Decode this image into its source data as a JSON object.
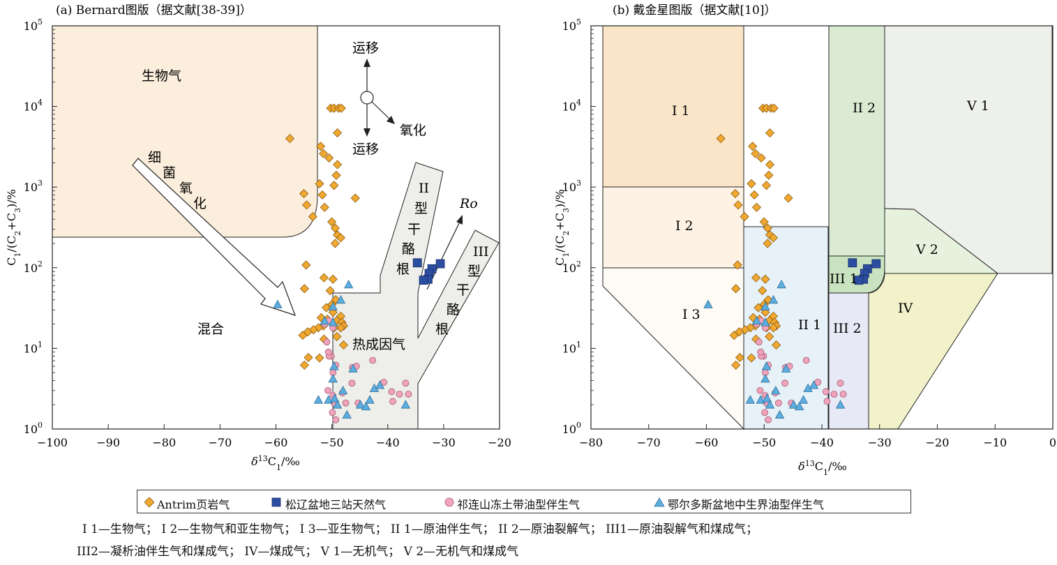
{
  "chart_data": [
    {
      "type": "scatter",
      "title": "(a) Bernard图版（据文献[38-39]）",
      "xlabel": "δ13C1/‰",
      "ylabel": "C1/(C2+C3)/%",
      "xlim": [
        -100,
        -20
      ],
      "ylim": [
        1,
        100000
      ],
      "yscale": "log",
      "x_ticks": [
        "−100",
        "−90",
        "−80",
        "−70",
        "−60",
        "−50",
        "−40",
        "−30",
        "−20"
      ],
      "y_ticks": [
        "10^0",
        "10^1",
        "10^2",
        "10^3",
        "10^4",
        "10^5"
      ],
      "region_labels": {
        "bio": "生物气",
        "mix": "混合",
        "thermo": "热成因气",
        "kerogen2": [
          "II",
          "型",
          "干",
          "酪",
          "根"
        ],
        "kerogen3": [
          "III",
          "型",
          "干",
          "酪",
          "根"
        ],
        "bact": [
          "细",
          "菌",
          "氧",
          "化"
        ],
        "mig_up": "运移",
        "mig_down": "运移",
        "oxid": "氧化",
        "ro": "Ro"
      }
    },
    {
      "type": "scatter",
      "title": "(b) 戴金星图版（据文献[10]）",
      "xlabel": "δ13C1/‰",
      "ylabel": "C1/(C2+C3)/%",
      "xlim": [
        -80,
        0
      ],
      "ylim": [
        1,
        100000
      ],
      "yscale": "log",
      "x_ticks": [
        "−80",
        "−70",
        "−60",
        "−50",
        "−40",
        "−30",
        "−20",
        "−10",
        "0"
      ],
      "y_ticks": [
        "10^0",
        "10^1",
        "10^2",
        "10^3",
        "10^4",
        "10^5"
      ],
      "region_labels": {
        "I1": "I 1",
        "I2": "I 2",
        "I3": "I 3",
        "II1": "II 1",
        "II2": "II 2",
        "III1": "III 1",
        "III2": "III 2",
        "IV": "IV",
        "V1": "V 1",
        "V2": "V 2"
      }
    }
  ],
  "series": [
    {
      "name": "Antrim页岩气",
      "color": "#F0A830",
      "marker": "diamond",
      "points": [
        [
          -50.2,
          9500
        ],
        [
          -49.6,
          9500
        ],
        [
          -48.8,
          9500
        ],
        [
          -48.3,
          9500
        ],
        [
          -49.0,
          4700
        ],
        [
          -57.5,
          4000
        ],
        [
          -52.0,
          3200
        ],
        [
          -51.5,
          2600
        ],
        [
          -50.5,
          2300
        ],
        [
          -49.0,
          1900
        ],
        [
          -49.2,
          1400
        ],
        [
          -49.6,
          1050
        ],
        [
          -52.2,
          1100
        ],
        [
          -55.0,
          830
        ],
        [
          -51.7,
          800
        ],
        [
          -54.5,
          600
        ],
        [
          -51.3,
          560
        ],
        [
          -45.8,
          730
        ],
        [
          -53.4,
          430
        ],
        [
          -50.0,
          370
        ],
        [
          -49.4,
          310
        ],
        [
          -49.0,
          255
        ],
        [
          -48.4,
          235
        ],
        [
          -49.4,
          200
        ],
        [
          -54.6,
          108
        ],
        [
          -51.4,
          75
        ],
        [
          -49.8,
          72
        ],
        [
          -54.9,
          55
        ],
        [
          -50.3,
          52
        ],
        [
          -49.3,
          40
        ],
        [
          -50.0,
          35
        ],
        [
          -51.0,
          32
        ],
        [
          -49.8,
          28
        ],
        [
          -48.4,
          25
        ],
        [
          -50.8,
          23
        ],
        [
          -51.9,
          24
        ],
        [
          -49.1,
          22
        ],
        [
          -48.2,
          21
        ],
        [
          -47.9,
          19
        ],
        [
          -48.4,
          18
        ],
        [
          -49.6,
          18
        ],
        [
          -51.5,
          19
        ],
        [
          -52.4,
          18
        ],
        [
          -53.3,
          17
        ],
        [
          -54.3,
          16
        ],
        [
          -55.2,
          14.5
        ],
        [
          -51.4,
          13
        ],
        [
          -49.1,
          14
        ],
        [
          -47.9,
          11
        ],
        [
          -54.2,
          7.7
        ],
        [
          -52.2,
          7.6
        ],
        [
          -54.9,
          6.2
        ]
      ]
    },
    {
      "name": "松辽盆地三站天然气",
      "color": "#2B4EA0",
      "marker": "square",
      "points": [
        [
          -34.7,
          115
        ],
        [
          -30.6,
          112
        ],
        [
          -32.1,
          97
        ],
        [
          -32.6,
          85
        ],
        [
          -32.8,
          72
        ],
        [
          -33.6,
          70
        ]
      ]
    },
    {
      "name": "祁连山冻土带油型伴生气",
      "color": "#F2A3BC",
      "marker": "circle",
      "points": [
        [
          -50.5,
          22
        ],
        [
          -49.8,
          18
        ],
        [
          -51.3,
          20
        ],
        [
          -50.1,
          8
        ],
        [
          -50.5,
          8
        ],
        [
          -49.3,
          6.2
        ],
        [
          -49.8,
          5
        ],
        [
          -50.7,
          3
        ],
        [
          -49.8,
          2.6
        ],
        [
          -49.6,
          2.1
        ],
        [
          -48.1,
          2.8
        ],
        [
          -47.5,
          2.1
        ],
        [
          -49.9,
          1.6
        ],
        [
          -49.3,
          1.3
        ],
        [
          -45.3,
          2.1
        ],
        [
          -46.3,
          5.8
        ],
        [
          -45.6,
          6
        ],
        [
          -46.4,
          3.7
        ],
        [
          -42.7,
          7.1
        ],
        [
          -40.7,
          3.8
        ],
        [
          -39.3,
          2.9
        ],
        [
          -39.1,
          2.2
        ],
        [
          -37.9,
          2.7
        ],
        [
          -36.8,
          3.7
        ],
        [
          -36.3,
          2.7
        ],
        [
          -50.9,
          12
        ],
        [
          -50.6,
          9
        ]
      ]
    },
    {
      "name": "鄂尔多斯盆地中生界油型伴生气",
      "color": "#5DAEE0",
      "marker": "triangle",
      "points": [
        [
          -59.7,
          35
        ],
        [
          -47.0,
          62
        ],
        [
          -48.4,
          40
        ],
        [
          -49.8,
          33
        ],
        [
          -51.3,
          22
        ],
        [
          -49.8,
          21
        ],
        [
          -49.6,
          6
        ],
        [
          -46.2,
          5.6
        ],
        [
          -49.8,
          4.2
        ],
        [
          -48.0,
          3.0
        ],
        [
          -50.6,
          2.3
        ],
        [
          -49.5,
          2.4
        ],
        [
          -52.4,
          2.3
        ],
        [
          -49.0,
          2.0
        ],
        [
          -44.9,
          2.0
        ],
        [
          -43.2,
          2.3
        ],
        [
          -42.4,
          3.2
        ],
        [
          -41.4,
          3.5
        ],
        [
          -43.9,
          1.9
        ],
        [
          -36.8,
          2.0
        ],
        [
          -47.3,
          1.5
        ]
      ]
    }
  ],
  "legend_labels": [
    "Antrim页岩气",
    "松辽盆地三站天然气",
    "祁连山冻土带油型伴生气",
    "鄂尔多斯盆地中生界油型伴生气"
  ],
  "footnotes": {
    "line1": "I 1—生物气； I 2—生物气和亚生物气； I 3—亚生物气； II 1—原油伴生气； II 2—原油裂解气； III1—原油裂解气和煤成气；",
    "line2": "III2—凝析油伴生气和煤成气； IV—煤成气； V 1—无机气； V 2—无机气和煤成气"
  }
}
